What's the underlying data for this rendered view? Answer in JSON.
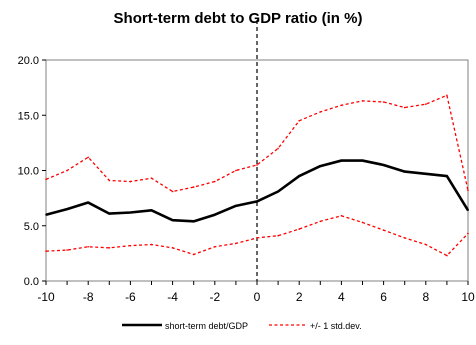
{
  "chart_data": {
    "type": "line",
    "title": "Short-term debt to GDP ratio (in %)",
    "xlabel": "",
    "ylabel": "",
    "x": [
      -10,
      -9,
      -8,
      -7,
      -6,
      -5,
      -4,
      -3,
      -2,
      -1,
      0,
      1,
      2,
      3,
      4,
      5,
      6,
      7,
      8,
      9,
      10
    ],
    "xlim": [
      -10,
      10
    ],
    "ylim": [
      0,
      20
    ],
    "x_tick_labels": [
      "-10",
      "-8",
      "-6",
      "-4",
      "-2",
      "0",
      "2",
      "4",
      "6",
      "8",
      "10"
    ],
    "y_tick_labels": [
      "0.0",
      "5.0",
      "10.0",
      "15.0",
      "20.0"
    ],
    "grid": false,
    "vertical_reference_line_at_x": 0,
    "legend_position": "bottom",
    "series": [
      {
        "name": "short-term debt/GDP",
        "color": "#000000",
        "style": "solid",
        "values": [
          6.0,
          6.5,
          7.1,
          6.1,
          6.2,
          6.4,
          5.5,
          5.4,
          6.0,
          6.8,
          7.2,
          8.1,
          9.5,
          10.4,
          10.9,
          10.9,
          10.5,
          9.9,
          9.7,
          9.5,
          6.4
        ]
      },
      {
        "name": "+/- 1 std.dev.",
        "color": "#ff0000",
        "style": "dashed",
        "values": [
          9.2,
          10.0,
          11.2,
          9.1,
          9.0,
          9.3,
          8.1,
          8.5,
          9.0,
          10.0,
          10.5,
          12.0,
          14.5,
          15.3,
          15.9,
          16.3,
          16.2,
          15.7,
          16.0,
          16.8,
          8.2
        ]
      },
      {
        "name": "",
        "color": "#ff0000",
        "style": "dashed",
        "values": [
          2.7,
          2.8,
          3.1,
          3.0,
          3.2,
          3.3,
          3.0,
          2.4,
          3.1,
          3.4,
          3.9,
          4.1,
          4.7,
          5.4,
          5.9,
          5.3,
          4.6,
          3.9,
          3.3,
          2.3,
          4.3
        ]
      }
    ]
  }
}
